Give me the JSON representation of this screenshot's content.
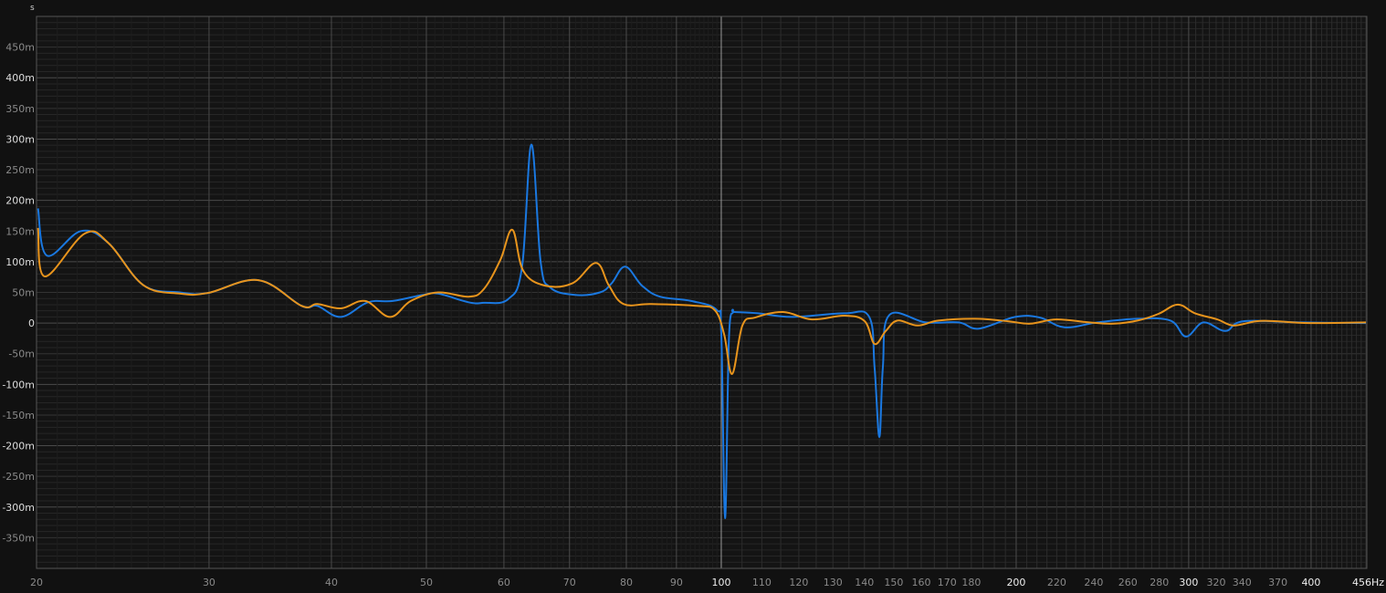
{
  "chart_data": {
    "type": "line",
    "title": "",
    "y_unit_label": "s",
    "x_scale": "log",
    "xlim": [
      20,
      456
    ],
    "ylim": [
      -400,
      500
    ],
    "grid": true,
    "background": "#111111",
    "x_ticks": [
      {
        "value": 20,
        "label": "20",
        "major": false
      },
      {
        "value": 30,
        "label": "30",
        "major": false
      },
      {
        "value": 40,
        "label": "40",
        "major": false
      },
      {
        "value": 50,
        "label": "50",
        "major": false
      },
      {
        "value": 60,
        "label": "60",
        "major": false
      },
      {
        "value": 70,
        "label": "70",
        "major": false
      },
      {
        "value": 80,
        "label": "80",
        "major": false
      },
      {
        "value": 90,
        "label": "90",
        "major": false
      },
      {
        "value": 100,
        "label": "100",
        "major": true
      },
      {
        "value": 110,
        "label": "110",
        "major": false
      },
      {
        "value": 120,
        "label": "120",
        "major": false
      },
      {
        "value": 130,
        "label": "130",
        "major": false
      },
      {
        "value": 140,
        "label": "140",
        "major": false
      },
      {
        "value": 150,
        "label": "150",
        "major": false
      },
      {
        "value": 160,
        "label": "160",
        "major": false
      },
      {
        "value": 170,
        "label": "170",
        "major": false
      },
      {
        "value": 180,
        "label": "180",
        "major": false
      },
      {
        "value": 200,
        "label": "200",
        "major": true
      },
      {
        "value": 220,
        "label": "220",
        "major": false
      },
      {
        "value": 240,
        "label": "240",
        "major": false
      },
      {
        "value": 260,
        "label": "260",
        "major": false
      },
      {
        "value": 280,
        "label": "280",
        "major": false
      },
      {
        "value": 300,
        "label": "300",
        "major": true
      },
      {
        "value": 320,
        "label": "320",
        "major": false
      },
      {
        "value": 340,
        "label": "340",
        "major": false
      },
      {
        "value": 370,
        "label": "370",
        "major": false
      },
      {
        "value": 400,
        "label": "400",
        "major": true
      },
      {
        "value": 456,
        "label": "456Hz",
        "major": true
      }
    ],
    "y_ticks": [
      {
        "value": 450,
        "label": "450m",
        "major": false
      },
      {
        "value": 400,
        "label": "400m",
        "major": true
      },
      {
        "value": 350,
        "label": "350m",
        "major": false
      },
      {
        "value": 300,
        "label": "300m",
        "major": true
      },
      {
        "value": 250,
        "label": "250m",
        "major": false
      },
      {
        "value": 200,
        "label": "200m",
        "major": true
      },
      {
        "value": 150,
        "label": "150m",
        "major": false
      },
      {
        "value": 100,
        "label": "100m",
        "major": true
      },
      {
        "value": 50,
        "label": "50m",
        "major": false
      },
      {
        "value": 0,
        "label": "0",
        "major": true
      },
      {
        "value": -50,
        "label": "-50m",
        "major": false
      },
      {
        "value": -100,
        "label": "-100m",
        "major": true
      },
      {
        "value": -150,
        "label": "-150m",
        "major": false
      },
      {
        "value": -200,
        "label": "-200m",
        "major": true
      },
      {
        "value": -250,
        "label": "-250m",
        "major": false
      },
      {
        "value": -300,
        "label": "-300m",
        "major": true
      },
      {
        "value": -350,
        "label": "-350m",
        "major": false
      }
    ],
    "series": [
      {
        "color": "#1a78e0",
        "points": [
          [
            20.07,
            187
          ],
          [
            20.5,
            110
          ],
          [
            22.2,
            150
          ],
          [
            23.7,
            130
          ],
          [
            25.7,
            62
          ],
          [
            28,
            50
          ],
          [
            29.9,
            49
          ],
          [
            33.7,
            70
          ],
          [
            37.3,
            28
          ],
          [
            38.7,
            28
          ],
          [
            40.9,
            10
          ],
          [
            43.6,
            34
          ],
          [
            46.2,
            36
          ],
          [
            49.6,
            46
          ],
          [
            51.4,
            48
          ],
          [
            55.2,
            34
          ],
          [
            57.2,
            33
          ],
          [
            60.6,
            39
          ],
          [
            62.6,
            91
          ],
          [
            64.0,
            291
          ],
          [
            65.4,
            100
          ],
          [
            66.9,
            58
          ],
          [
            70.9,
            46
          ],
          [
            75.2,
            50
          ],
          [
            77.3,
            65
          ],
          [
            79.8,
            92
          ],
          [
            83.0,
            61
          ],
          [
            86.6,
            43
          ],
          [
            93.2,
            36
          ],
          [
            99.0,
            21
          ],
          [
            100,
            -19
          ],
          [
            100.9,
            -318
          ],
          [
            101.8,
            -28
          ],
          [
            102.8,
            18
          ],
          [
            103.1,
            18
          ],
          [
            109,
            16
          ],
          [
            118,
            10
          ],
          [
            133.6,
            16
          ],
          [
            141.6,
            10
          ],
          [
            143.4,
            -73
          ],
          [
            145,
            -186
          ],
          [
            146.2,
            -73
          ],
          [
            148.4,
            13
          ],
          [
            161.7,
            1
          ],
          [
            174.7,
            1
          ],
          [
            183.2,
            -9
          ],
          [
            199.5,
            10
          ],
          [
            211.5,
            9
          ],
          [
            224,
            -7
          ],
          [
            242.1,
            1
          ],
          [
            266,
            7
          ],
          [
            287.4,
            4
          ],
          [
            298.1,
            -22
          ],
          [
            310.6,
            1
          ],
          [
            327,
            -13
          ],
          [
            341.3,
            3
          ],
          [
            390.6,
            1
          ],
          [
            455,
            0
          ]
        ]
      },
      {
        "color": "#e8941c",
        "points": [
          [
            20.07,
            155
          ],
          [
            20.4,
            76
          ],
          [
            22.4,
            146
          ],
          [
            23.7,
            130
          ],
          [
            25.7,
            62
          ],
          [
            28,
            48
          ],
          [
            29.9,
            49
          ],
          [
            33.7,
            70
          ],
          [
            37.3,
            28
          ],
          [
            38.7,
            31
          ],
          [
            40.9,
            24
          ],
          [
            43.3,
            36
          ],
          [
            45.9,
            10
          ],
          [
            48.2,
            36
          ],
          [
            51.4,
            50
          ],
          [
            55.2,
            43
          ],
          [
            57.2,
            55
          ],
          [
            59.5,
            103
          ],
          [
            61.2,
            152
          ],
          [
            62.8,
            85
          ],
          [
            66.1,
            61
          ],
          [
            70.5,
            65
          ],
          [
            74.5,
            98
          ],
          [
            76.8,
            61
          ],
          [
            79.5,
            31
          ],
          [
            84.8,
            31
          ],
          [
            94.4,
            28
          ],
          [
            98.5,
            21
          ],
          [
            100.7,
            -19
          ],
          [
            102.6,
            -83
          ],
          [
            105.1,
            -4
          ],
          [
            108.3,
            9
          ],
          [
            115.7,
            18
          ],
          [
            123.7,
            6
          ],
          [
            133.6,
            12
          ],
          [
            140.1,
            3
          ],
          [
            143.4,
            -34
          ],
          [
            147.2,
            -13
          ],
          [
            151.3,
            4
          ],
          [
            158.6,
            -4
          ],
          [
            166.6,
            4
          ],
          [
            181.6,
            7
          ],
          [
            196.1,
            3
          ],
          [
            206.6,
            -1
          ],
          [
            219.8,
            6
          ],
          [
            237.4,
            1
          ],
          [
            251.6,
            -1
          ],
          [
            266,
            4
          ],
          [
            279.5,
            15
          ],
          [
            292.4,
            30
          ],
          [
            304.5,
            16
          ],
          [
            320.8,
            6
          ],
          [
            333.3,
            -4
          ],
          [
            351.7,
            3
          ],
          [
            368.6,
            3
          ],
          [
            398.4,
            0
          ],
          [
            455,
            1
          ]
        ]
      }
    ]
  }
}
